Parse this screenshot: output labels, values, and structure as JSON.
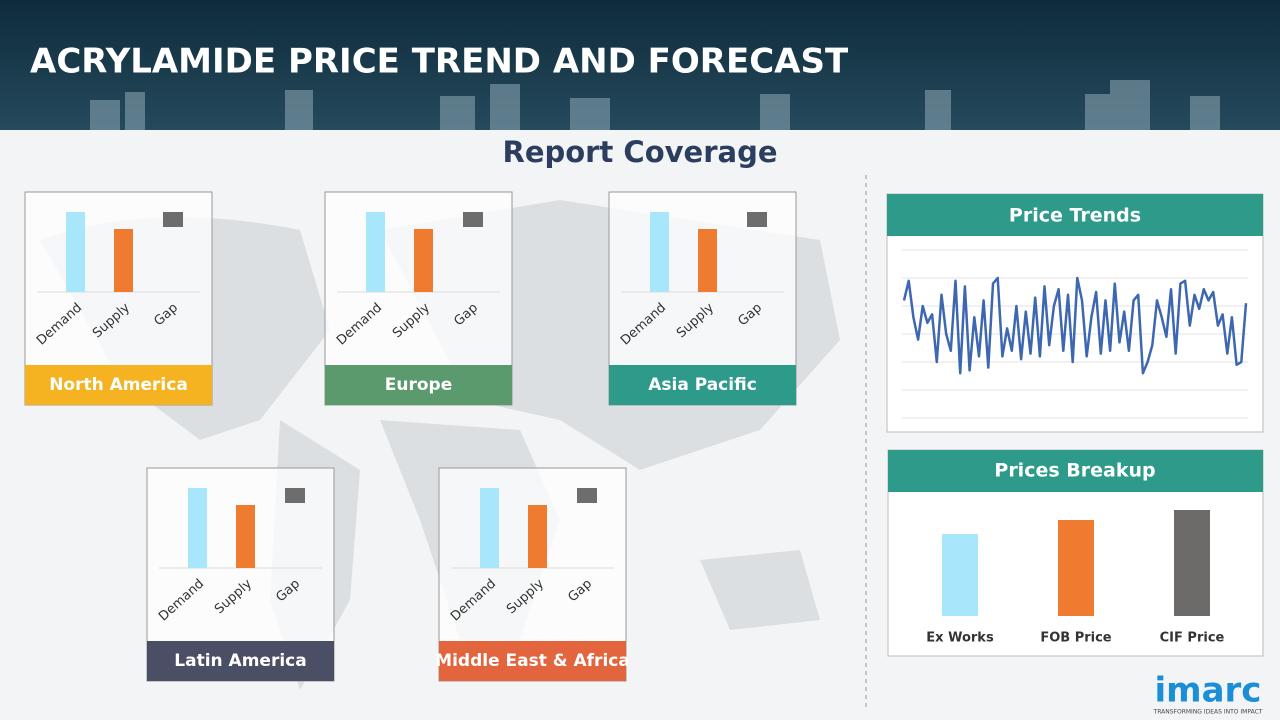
{
  "header": {
    "title": "ACRYLAMIDE PRICE TREND AND FORECAST"
  },
  "subtitle": "Report Coverage",
  "regions": [
    {
      "name": "North America",
      "color": "#f6b321",
      "categories": [
        "Demand",
        "Supply",
        "Gap"
      ],
      "values": [
        80,
        63,
        null
      ]
    },
    {
      "name": "Europe",
      "color": "#5a9a6c",
      "categories": [
        "Demand",
        "Supply",
        "Gap"
      ],
      "values": [
        80,
        63,
        null
      ]
    },
    {
      "name": "Asia Pacific",
      "color": "#2e9a8a",
      "categories": [
        "Demand",
        "Supply",
        "Gap"
      ],
      "values": [
        80,
        63,
        null
      ]
    },
    {
      "name": "Latin America",
      "color": "#4b4f66",
      "categories": [
        "Demand",
        "Supply",
        "Gap"
      ],
      "values": [
        80,
        63,
        null
      ]
    },
    {
      "name": "Middle East & Africa",
      "color": "#e2653e",
      "categories": [
        "Demand",
        "Supply",
        "Gap"
      ],
      "values": [
        80,
        63,
        null
      ]
    }
  ],
  "bar_colors": [
    "#a8e7fb",
    "#ee7b30",
    "#6d6d6d"
  ],
  "price_trends": {
    "title": "Price Trends",
    "color": "#3d67b1",
    "values": [
      4.2,
      4.9,
      3.6,
      2.8,
      4.0,
      3.4,
      3.7,
      2.0,
      4.4,
      3.0,
      2.4,
      4.9,
      1.6,
      4.7,
      1.7,
      3.6,
      2.2,
      4.2,
      1.8,
      4.8,
      5.0,
      2.2,
      3.2,
      2.4,
      4.0,
      2.1,
      3.8,
      2.3,
      4.3,
      2.2,
      4.7,
      2.6,
      4.0,
      4.6,
      2.4,
      4.4,
      2.0,
      5.0,
      4.2,
      2.2,
      3.6,
      4.5,
      2.3,
      4.2,
      2.4,
      4.8,
      2.7,
      3.8,
      2.4,
      4.2,
      4.4,
      1.6,
      2.0,
      2.6,
      4.2,
      3.6,
      2.9,
      4.6,
      2.3,
      4.8,
      4.9,
      3.3,
      4.4,
      3.9,
      4.6,
      4.2,
      4.5,
      3.3,
      3.7,
      2.3,
      3.6,
      1.9,
      2.0,
      4.1
    ]
  },
  "prices_breakup": {
    "title": "Prices Breakup",
    "categories": [
      "Ex Works",
      "FOB Price",
      "CIF Price"
    ],
    "values": [
      82,
      96,
      106
    ],
    "colors": [
      "#a8e7fb",
      "#ee7b30",
      "#6d6a6a"
    ]
  },
  "logo": {
    "name": "imarc",
    "tagline": "TRANSFORMING IDEAS INTO IMPACT"
  }
}
